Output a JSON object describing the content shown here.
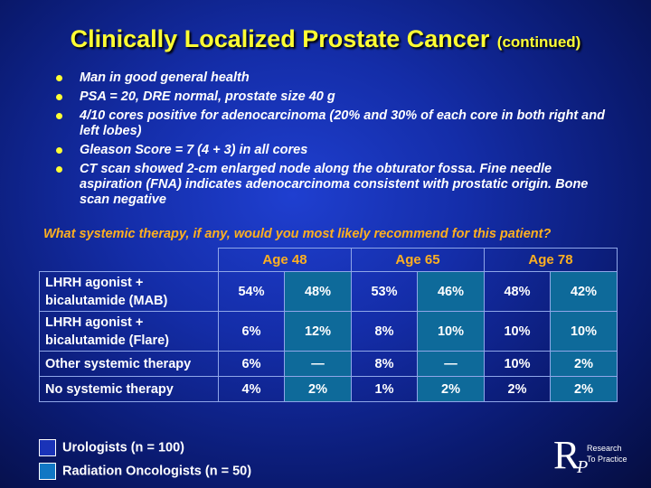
{
  "title": {
    "main": "Clinically Localized Prostate Cancer",
    "sub": "(continued)"
  },
  "bullets": [
    "Man in good general health",
    "PSA = 20, DRE normal, prostate size 40 g",
    "4/10 cores positive for adenocarcinoma (20% and 30% of each core in both right and left lobes)",
    "Gleason Score = 7 (4 + 3) in all cores",
    "CT scan showed 2-cm enlarged node along the obturator fossa. Fine needle aspiration (FNA) indicates  adenocarcinoma consistent with prostatic origin. Bone scan negative"
  ],
  "question": "What systemic therapy, if any, would you most likely recommend for this patient?",
  "table": {
    "ages": [
      "Age 48",
      "Age 65",
      "Age 78"
    ],
    "rows": [
      {
        "label_line1": "LHRH agonist +",
        "label_line2": "bicalutamide (MAB)",
        "values": [
          "54%",
          "48%",
          "53%",
          "46%",
          "48%",
          "42%"
        ]
      },
      {
        "label_line1": "LHRH agonist +",
        "label_line2": "bicalutamide (Flare)",
        "values": [
          "6%",
          "12%",
          "8%",
          "10%",
          "10%",
          "10%"
        ]
      },
      {
        "label_line1": "Other systemic therapy",
        "label_line2": "",
        "values": [
          "6%",
          "—",
          "8%",
          "—",
          "10%",
          "2%"
        ]
      },
      {
        "label_line1": "No systemic therapy",
        "label_line2": "",
        "values": [
          "4%",
          "2%",
          "1%",
          "2%",
          "2%",
          "2%"
        ]
      }
    ]
  },
  "legend": {
    "urologists": "Urologists  (n = 100)",
    "radiation": "Radiation Oncologists  (n = 50)"
  },
  "logo": {
    "letter_r": "R",
    "letter_p": "P",
    "line1": "Research",
    "line2": "To Practice"
  },
  "colors": {
    "title": "#ffff33",
    "question": "#ffb020",
    "rad_cell": "#0e6a9a",
    "bullet": "#ffff33"
  }
}
